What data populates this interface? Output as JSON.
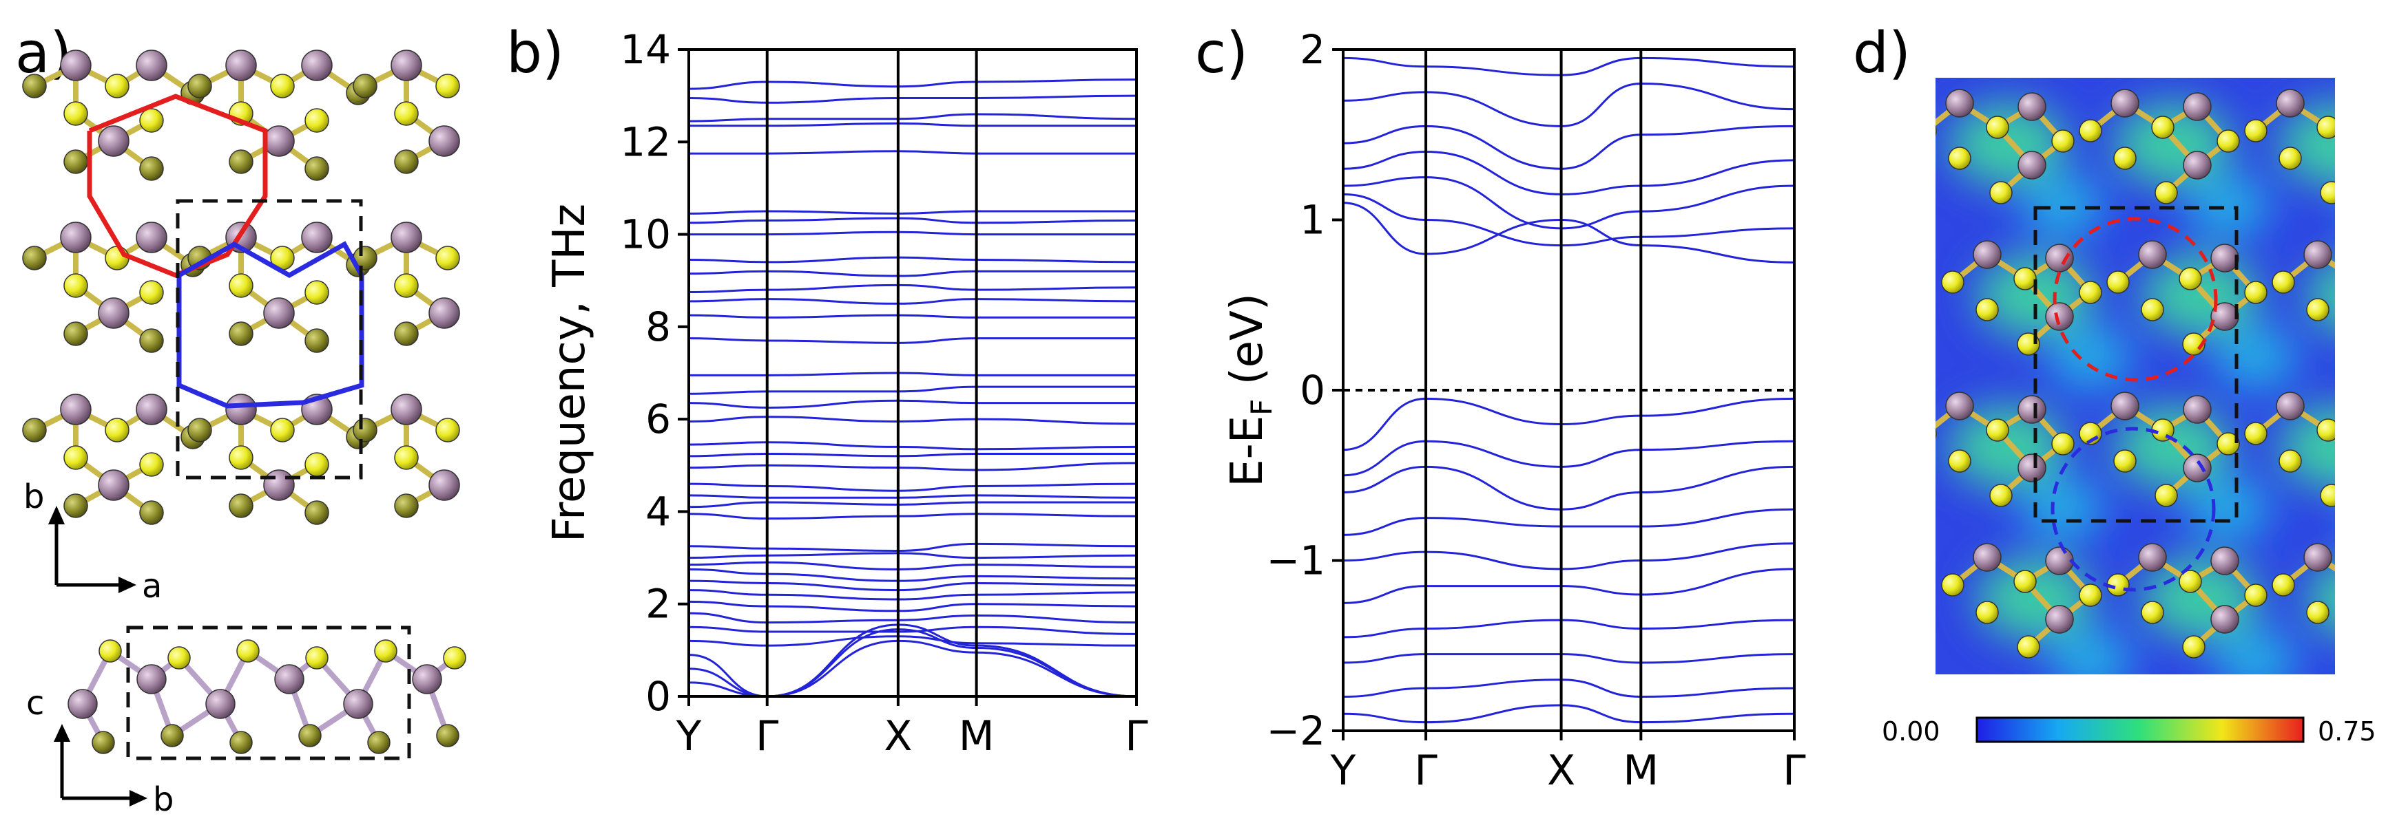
{
  "panels": {
    "a": {
      "label": "a)",
      "top_axes": {
        "vertical": "b",
        "horizontal": "a"
      },
      "bottom_axes": {
        "vertical": "c",
        "horizontal": "b"
      }
    },
    "b": {
      "label": "b)",
      "chart_data": {
        "type": "line",
        "title": "",
        "xlabel": "",
        "ylabel": "Frequency, THz",
        "ylim": [
          0,
          14
        ],
        "yticks": [
          "0",
          "2",
          "4",
          "6",
          "8",
          "10",
          "12",
          "14"
        ],
        "xticks": [
          "Y",
          "Γ",
          "X",
          "M",
          "Γ"
        ],
        "xtick_positions": [
          0,
          0.7,
          1.87,
          2.57,
          4.0
        ],
        "grid": false,
        "series_color": "#2323d8",
        "reference_line": {
          "y": 0,
          "style": "dashed"
        },
        "bands": [
          {
            "name": "",
            "values": [
              13.15,
              13.3,
              13.2,
              13.3,
              13.35
            ]
          },
          {
            "name": "",
            "values": [
              12.95,
              12.85,
              12.95,
              12.95,
              13.0
            ]
          },
          {
            "name": "",
            "values": [
              12.45,
              12.5,
              12.5,
              12.6,
              12.5
            ]
          },
          {
            "name": "",
            "values": [
              12.35,
              12.35,
              12.4,
              12.35,
              12.35
            ]
          },
          {
            "name": "",
            "values": [
              11.75,
              11.75,
              11.8,
              11.75,
              11.75
            ]
          },
          {
            "name": "",
            "values": [
              10.45,
              10.5,
              10.45,
              10.5,
              10.5
            ]
          },
          {
            "name": "",
            "values": [
              10.25,
              10.3,
              10.35,
              10.25,
              10.3
            ]
          },
          {
            "name": "",
            "values": [
              10.0,
              10.0,
              10.05,
              10.0,
              10.0
            ]
          },
          {
            "name": "",
            "values": [
              9.45,
              9.4,
              9.5,
              9.45,
              9.4
            ]
          },
          {
            "name": "",
            "values": [
              9.15,
              9.2,
              9.1,
              9.2,
              9.2
            ]
          },
          {
            "name": "",
            "values": [
              8.75,
              8.8,
              8.9,
              8.8,
              8.85
            ]
          },
          {
            "name": "",
            "values": [
              8.55,
              8.6,
              8.5,
              8.6,
              8.55
            ]
          },
          {
            "name": "",
            "values": [
              8.25,
              8.2,
              8.25,
              8.2,
              8.2
            ]
          },
          {
            "name": "",
            "values": [
              7.75,
              7.7,
              7.65,
              7.75,
              7.75
            ]
          },
          {
            "name": "",
            "values": [
              6.95,
              6.95,
              7.0,
              6.95,
              6.95
            ]
          },
          {
            "name": "",
            "values": [
              6.55,
              6.6,
              6.6,
              6.7,
              6.7
            ]
          },
          {
            "name": "",
            "values": [
              6.35,
              6.25,
              6.4,
              6.35,
              6.35
            ]
          },
          {
            "name": "",
            "values": [
              5.95,
              6.05,
              5.95,
              6.0,
              5.9
            ]
          },
          {
            "name": "",
            "values": [
              5.45,
              5.5,
              5.4,
              5.35,
              5.4
            ]
          },
          {
            "name": "",
            "values": [
              5.2,
              5.25,
              5.2,
              5.25,
              5.25
            ]
          },
          {
            "name": "",
            "values": [
              4.95,
              5.0,
              4.95,
              4.9,
              5.05
            ]
          },
          {
            "name": "",
            "values": [
              4.6,
              4.55,
              4.45,
              4.55,
              4.6
            ]
          },
          {
            "name": "",
            "values": [
              4.35,
              4.3,
              4.3,
              4.35,
              4.3
            ]
          },
          {
            "name": "",
            "values": [
              4.1,
              4.2,
              4.15,
              4.2,
              4.2
            ]
          },
          {
            "name": "",
            "values": [
              3.95,
              3.85,
              3.9,
              3.95,
              3.9
            ]
          },
          {
            "name": "",
            "values": [
              3.25,
              3.2,
              3.15,
              3.3,
              3.25
            ]
          },
          {
            "name": "",
            "values": [
              3.0,
              3.05,
              3.1,
              3.0,
              3.05
            ]
          },
          {
            "name": "",
            "values": [
              2.85,
              2.9,
              2.75,
              2.85,
              2.8
            ]
          },
          {
            "name": "",
            "values": [
              2.75,
              2.65,
              2.5,
              2.6,
              2.55
            ]
          },
          {
            "name": "",
            "values": [
              2.5,
              2.45,
              2.3,
              2.45,
              2.4
            ]
          },
          {
            "name": "",
            "values": [
              2.3,
              2.2,
              2.1,
              2.2,
              2.25
            ]
          },
          {
            "name": "",
            "values": [
              2.05,
              1.95,
              1.85,
              2.0,
              1.95
            ]
          },
          {
            "name": "",
            "values": [
              1.8,
              1.6,
              1.65,
              1.75,
              1.6
            ]
          },
          {
            "name": "",
            "values": [
              1.5,
              1.4,
              1.4,
              1.5,
              1.35
            ]
          },
          {
            "name": "",
            "values": [
              1.2,
              1.1,
              1.3,
              1.15,
              1.1
            ]
          },
          {
            "name": "",
            "values": [
              0.9,
              0.0,
              1.55,
              1.1,
              0.0
            ]
          },
          {
            "name": "",
            "values": [
              0.6,
              0.0,
              1.45,
              1.05,
              0.0
            ]
          },
          {
            "name": "",
            "values": [
              0.3,
              0.0,
              1.2,
              0.95,
              0.0
            ]
          }
        ]
      }
    },
    "c": {
      "label": "c)",
      "chart_data": {
        "type": "line",
        "title": "",
        "xlabel": "",
        "ylabel": "E-E",
        "ylabel_subscript": "F",
        "ylabel_suffix": " (eV)",
        "ylim": [
          -2,
          2
        ],
        "yticks": [
          "−2",
          "−1",
          "0",
          "1",
          "2"
        ],
        "xticks": [
          "Y",
          "Γ",
          "X",
          "M",
          "Γ"
        ],
        "xtick_positions": [
          0,
          0.55,
          1.45,
          1.98,
          3.0
        ],
        "grid": false,
        "series_color": "#2323d8",
        "reference_line": {
          "y": 0,
          "style": "dashed"
        },
        "bands": [
          {
            "name": "",
            "values": [
              1.95,
              1.9,
              1.85,
              1.95,
              1.9
            ]
          },
          {
            "name": "",
            "values": [
              1.7,
              1.75,
              1.55,
              1.8,
              1.65
            ]
          },
          {
            "name": "",
            "values": [
              1.45,
              1.55,
              1.3,
              1.5,
              1.55
            ]
          },
          {
            "name": "",
            "values": [
              1.3,
              1.4,
              1.15,
              1.2,
              1.35
            ]
          },
          {
            "name": "",
            "values": [
              1.2,
              1.25,
              0.95,
              1.05,
              1.2
            ]
          },
          {
            "name": "",
            "values": [
              1.15,
              1.0,
              0.85,
              0.9,
              0.95
            ]
          },
          {
            "name": "",
            "values": [
              1.1,
              0.8,
              1.0,
              0.85,
              0.75
            ]
          },
          {
            "name": "",
            "values": [
              -0.35,
              -0.05,
              -0.2,
              -0.15,
              -0.05
            ]
          },
          {
            "name": "",
            "values": [
              -0.5,
              -0.3,
              -0.45,
              -0.35,
              -0.3
            ]
          },
          {
            "name": "",
            "values": [
              -0.6,
              -0.45,
              -0.7,
              -0.6,
              -0.45
            ]
          },
          {
            "name": "",
            "values": [
              -0.85,
              -0.75,
              -0.8,
              -0.8,
              -0.7
            ]
          },
          {
            "name": "",
            "values": [
              -1.0,
              -0.95,
              -1.05,
              -1.0,
              -0.9
            ]
          },
          {
            "name": "",
            "values": [
              -1.25,
              -1.15,
              -1.15,
              -1.2,
              -1.05
            ]
          },
          {
            "name": "",
            "values": [
              -1.45,
              -1.4,
              -1.35,
              -1.4,
              -1.35
            ]
          },
          {
            "name": "",
            "values": [
              -1.6,
              -1.55,
              -1.55,
              -1.6,
              -1.55
            ]
          },
          {
            "name": "",
            "values": [
              -1.8,
              -1.75,
              -1.7,
              -1.8,
              -1.75
            ]
          },
          {
            "name": "",
            "values": [
              -1.9,
              -1.95,
              -1.85,
              -1.95,
              -1.9
            ]
          }
        ]
      }
    },
    "d": {
      "label": "d)",
      "colorbar": {
        "min": "0.00",
        "max": "0.75"
      },
      "colors": {
        "low": "#2a3ee8",
        "mid": "#39d3a8",
        "high": "#e81f1f"
      }
    }
  },
  "colors": {
    "mo_atom": "#9c7c9c",
    "s_upper": "#e6e61a",
    "s_lower": "#8c8c2a",
    "band": "#2323d8",
    "red_path": "#e31e1e",
    "blue_path": "#2a2adf"
  }
}
